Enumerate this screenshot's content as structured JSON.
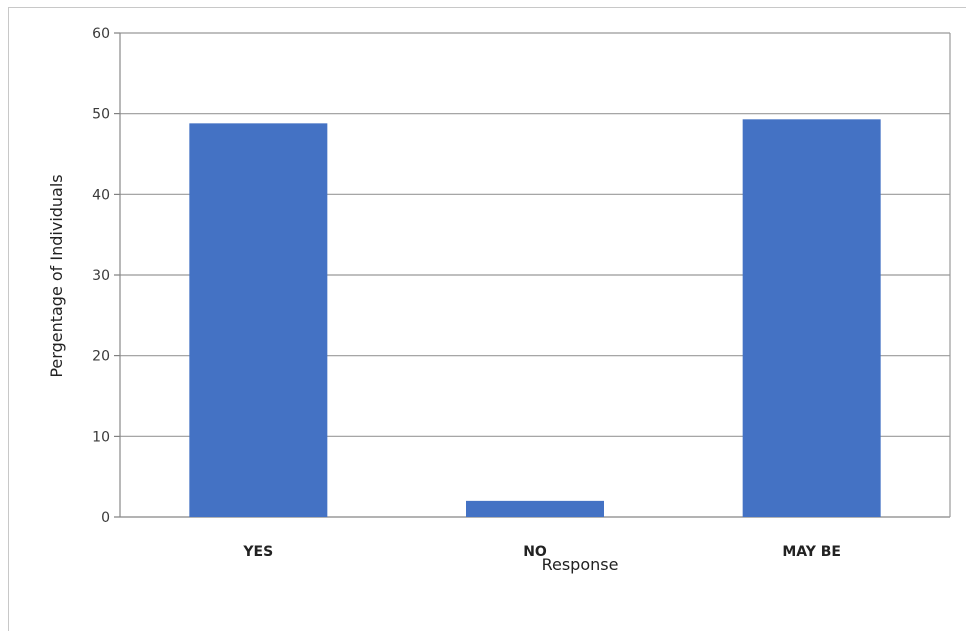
{
  "chart_data": {
    "type": "bar",
    "categories": [
      "YES",
      "NO",
      "MAY BE"
    ],
    "values": [
      48.8,
      2.0,
      49.3
    ],
    "xlabel": "Response",
    "ylabel": "Pergentage  of Individuals",
    "ylim": [
      0,
      60
    ],
    "yticks": [
      0,
      10,
      20,
      30,
      40,
      50,
      60
    ],
    "grid": true,
    "bar_color": "#4472c4",
    "grid_color": "#999999"
  }
}
